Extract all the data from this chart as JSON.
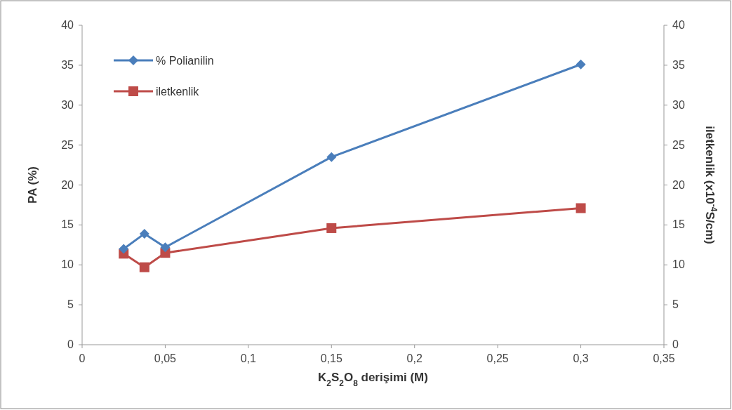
{
  "chart_data": {
    "type": "line",
    "xlabel": "K$_{2}$S$_{2}$O$_{8}$ derişimi (M)",
    "ylabel": "PA (%)",
    "y2label": "iletkenlik (x10$^{-4}$S/cm)",
    "x": [
      0.025,
      0.0375,
      0.05,
      0.15,
      0.3
    ],
    "series": [
      {
        "name": "% Polianilin",
        "color": "#4a7ebb",
        "marker": "diamond",
        "values": [
          12,
          13.9,
          12.2,
          23.5,
          35.1
        ]
      },
      {
        "name": "iletkenlik",
        "color": "#be4b48",
        "marker": "square",
        "axis": "y2",
        "values": [
          11.4,
          9.7,
          11.5,
          14.6,
          17.1
        ]
      }
    ],
    "xlim": [
      0,
      0.35
    ],
    "xticks": [
      0,
      {
        "value": 0.05,
        "label": "0,05"
      },
      {
        "value": 0.1,
        "label": "0,1"
      },
      {
        "value": 0.15,
        "label": "0,15"
      },
      {
        "value": 0.2,
        "label": "0,2"
      },
      {
        "value": 0.25,
        "label": "0,25"
      },
      {
        "value": 0.3,
        "label": "0,3"
      },
      {
        "value": 0.35,
        "label": "0,35"
      }
    ],
    "ylim": [
      0,
      40
    ],
    "yticks": [
      0,
      5,
      10,
      15,
      20,
      25,
      30,
      35,
      40
    ],
    "y2lim": [
      0,
      40
    ],
    "y2ticks": [
      0,
      5,
      10,
      15,
      20,
      25,
      30,
      35,
      40
    ],
    "legend": "top left",
    "grid": false,
    "line_style": "solid"
  }
}
